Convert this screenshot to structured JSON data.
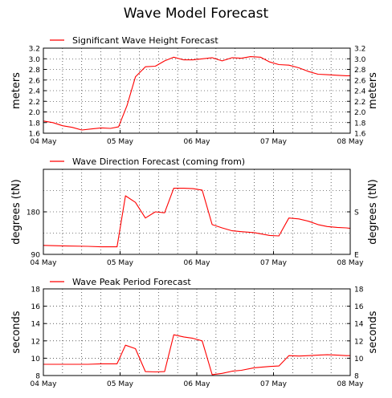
{
  "title": "Wave Model Forecast",
  "colors": {
    "line": "#ff0000",
    "grid": "#000000",
    "text": "#000000"
  },
  "chart_data": [
    {
      "type": "line",
      "legend": "Significant Wave Height Forecast",
      "legend_placement": "top-left",
      "ylabel": "meters",
      "ylim": [
        1.6,
        3.2
      ],
      "yticks": [
        1.6,
        1.8,
        2.0,
        2.2,
        2.4,
        2.6,
        2.8,
        3.0,
        3.2
      ],
      "ytick_labels": [
        "1.6",
        "1.8",
        "2.0",
        "2.2",
        "2.4",
        "2.6",
        "2.8",
        "3.0",
        "3.2"
      ],
      "right_ytick_labels": [
        "1.6",
        "1.8",
        "2.0",
        "2.2",
        "2.4",
        "2.6",
        "2.8",
        "3.0",
        "3.2"
      ],
      "right_ylabel": "meters",
      "xlim": [
        0,
        4
      ],
      "xticks": [
        0,
        1,
        2,
        3,
        4
      ],
      "xtick_labels": [
        "04 May",
        "05 May",
        "06 May",
        "07 May",
        "08 May"
      ],
      "grid": true,
      "minor_grid_y": false,
      "x": [
        0,
        0.125,
        0.25,
        0.375,
        0.5,
        0.625,
        0.75,
        0.875,
        0.98,
        1.09,
        1.2,
        1.33,
        1.46,
        1.58,
        1.7,
        1.83,
        1.95,
        2.07,
        2.2,
        2.33,
        2.46,
        2.58,
        2.7,
        2.83,
        2.95,
        3.07,
        3.2,
        3.33,
        3.46,
        3.58,
        3.7,
        3.83,
        3.95,
        4.0
      ],
      "y": [
        1.83,
        1.8,
        1.74,
        1.71,
        1.66,
        1.68,
        1.7,
        1.69,
        1.72,
        2.12,
        2.66,
        2.85,
        2.86,
        2.96,
        3.03,
        2.98,
        2.98,
        3.0,
        3.02,
        2.96,
        3.02,
        3.01,
        3.04,
        3.03,
        2.94,
        2.89,
        2.88,
        2.83,
        2.76,
        2.71,
        2.7,
        2.69,
        2.68,
        2.68
      ]
    },
    {
      "type": "line",
      "legend": "Wave Direction Forecast (coming from)",
      "legend_placement": "top-left",
      "ylabel": "degrees (tN)",
      "ylim": [
        90,
        270
      ],
      "yticks": [
        90,
        180
      ],
      "ytick_labels": [
        "90",
        "180"
      ],
      "right_ytick_labels": [
        "E",
        "S"
      ],
      "right_ylabel": "degrees (tN)",
      "xlim": [
        0,
        4
      ],
      "xticks": [
        0,
        1,
        2,
        3,
        4
      ],
      "xtick_labels": [
        "04 May",
        "05 May",
        "06 May",
        "07 May",
        "08 May"
      ],
      "grid": true,
      "minor_grid_y": true,
      "x": [
        0,
        0.25,
        0.58,
        0.75,
        0.96,
        1.07,
        1.2,
        1.33,
        1.46,
        1.58,
        1.7,
        1.83,
        1.95,
        2.07,
        2.2,
        2.33,
        2.46,
        2.58,
        2.75,
        2.95,
        3.07,
        3.2,
        3.33,
        3.46,
        3.58,
        3.7,
        3.83,
        3.95,
        4.0
      ],
      "y": [
        109,
        108,
        107,
        106,
        106,
        214,
        200,
        167,
        180,
        178,
        230,
        230,
        229,
        226,
        153,
        146,
        140,
        138,
        136,
        130,
        129,
        167,
        165,
        160,
        153,
        149,
        147,
        146,
        145
      ]
    },
    {
      "type": "line",
      "legend": "Wave Peak Period Forecast",
      "legend_placement": "top-left",
      "ylabel": "seconds",
      "ylim": [
        8,
        18
      ],
      "yticks": [
        8,
        10,
        12,
        14,
        16,
        18
      ],
      "ytick_labels": [
        "8",
        "10",
        "12",
        "14",
        "16",
        "18"
      ],
      "right_ytick_labels": [
        "8",
        "10",
        "12",
        "14",
        "16",
        "18"
      ],
      "right_ylabel": "seconds",
      "xlim": [
        0,
        4
      ],
      "xticks": [
        0,
        1,
        2,
        3,
        4
      ],
      "xtick_labels": [
        "04 May",
        "05 May",
        "06 May",
        "07 May",
        "08 May"
      ],
      "grid": true,
      "minor_grid_y": false,
      "x": [
        0,
        0.25,
        0.58,
        0.75,
        0.96,
        1.07,
        1.2,
        1.33,
        1.46,
        1.58,
        1.7,
        1.83,
        1.95,
        2.07,
        2.2,
        2.33,
        2.46,
        2.58,
        2.75,
        2.95,
        3.07,
        3.2,
        3.33,
        3.46,
        3.58,
        3.7,
        3.83,
        3.95,
        4.0
      ],
      "y": [
        9.3,
        9.3,
        9.3,
        9.35,
        9.35,
        11.5,
        11.1,
        8.45,
        8.42,
        8.45,
        12.7,
        12.45,
        12.3,
        12.0,
        8.1,
        8.25,
        8.5,
        8.6,
        8.9,
        9.05,
        9.1,
        10.3,
        10.25,
        10.3,
        10.35,
        10.4,
        10.35,
        10.3,
        10.3
      ]
    }
  ]
}
